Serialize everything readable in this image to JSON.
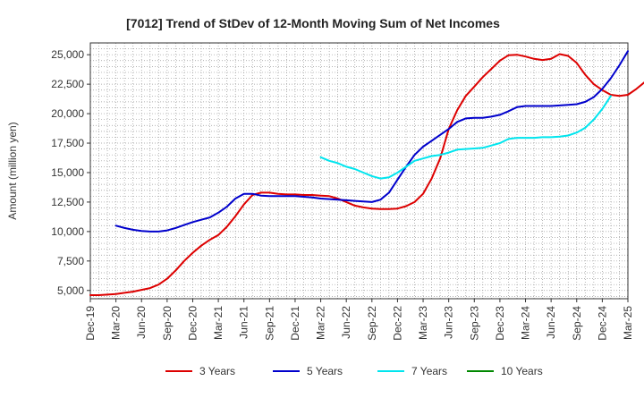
{
  "chart_data": {
    "type": "line",
    "title": "[7012]  Trend of StDev of 12-Month Moving Sum of Net Incomes",
    "ylabel": "Amount (million yen)",
    "xlabel": "",
    "x_ticks": [
      "Dec-19",
      "Mar-20",
      "Jun-20",
      "Sep-20",
      "Dec-20",
      "Mar-21",
      "Jun-21",
      "Sep-21",
      "Dec-21",
      "Mar-22",
      "Jun-22",
      "Sep-22",
      "Dec-22",
      "Mar-23",
      "Jun-23",
      "Sep-23",
      "Dec-23",
      "Mar-24",
      "Jun-24",
      "Sep-24",
      "Dec-24",
      "Mar-25"
    ],
    "y_ticks": [
      5000,
      7500,
      10000,
      12500,
      15000,
      17500,
      20000,
      22500,
      25000
    ],
    "y_tick_labels": [
      "5,000",
      "7,500",
      "10,000",
      "12,500",
      "15,000",
      "17,500",
      "20,000",
      "22,500",
      "25,000"
    ],
    "ylim": [
      4300,
      26000
    ],
    "grid": true,
    "legend_position": "bottom",
    "series": [
      {
        "name": "3 Years",
        "color": "#dd0000",
        "start_month": "Dec-19",
        "values": [
          4600,
          4600,
          4650,
          4700,
          4800,
          4900,
          5050,
          5200,
          5500,
          6000,
          6700,
          7500,
          8200,
          8800,
          9300,
          9700,
          10400,
          11300,
          12300,
          13100,
          13300,
          13300,
          13200,
          13150,
          13150,
          13100,
          13100,
          13050,
          13000,
          12800,
          12500,
          12200,
          12050,
          11950,
          11900,
          11900,
          11950,
          12150,
          12500,
          13200,
          14500,
          16200,
          18700,
          20300,
          21500,
          22300,
          23100,
          23800,
          24500,
          24950,
          25000,
          24850,
          24650,
          24550,
          24650,
          25050,
          24900,
          24300,
          23300,
          22500,
          22000,
          21600,
          21500,
          21600,
          22100,
          22700,
          23300,
          23900,
          24500
        ]
      },
      {
        "name": "5 Years",
        "color": "#0000cc",
        "start_month": "Mar-20",
        "values": [
          10500,
          10300,
          10150,
          10050,
          10000,
          10000,
          10100,
          10300,
          10550,
          10800,
          11000,
          11200,
          11600,
          12100,
          12800,
          13200,
          13200,
          13050,
          13000,
          13000,
          13000,
          13000,
          12950,
          12900,
          12800,
          12750,
          12700,
          12650,
          12600,
          12550,
          12500,
          12700,
          13300,
          14400,
          15500,
          16500,
          17200,
          17700,
          18200,
          18700,
          19300,
          19600,
          19650,
          19650,
          19750,
          19900,
          20200,
          20550,
          20650,
          20650,
          20650,
          20650,
          20700,
          20750,
          20800,
          21000,
          21400,
          22100,
          23000,
          24100,
          25300
        ]
      },
      {
        "name": "7 Years",
        "color": "#00e5ee",
        "start_month": "Mar-22",
        "values": [
          16300,
          16000,
          15800,
          15500,
          15300,
          15000,
          14700,
          14500,
          14600,
          15000,
          15500,
          16000,
          16200,
          16400,
          16500,
          16700,
          16950,
          17000,
          17050,
          17100,
          17300,
          17500,
          17850,
          17950,
          17950,
          17950,
          18000,
          18000,
          18050,
          18150,
          18400,
          18800,
          19500,
          20400,
          21500
        ]
      },
      {
        "name": "10 Years",
        "color": "#008800",
        "start_month": "Dec-19",
        "values": []
      }
    ]
  }
}
